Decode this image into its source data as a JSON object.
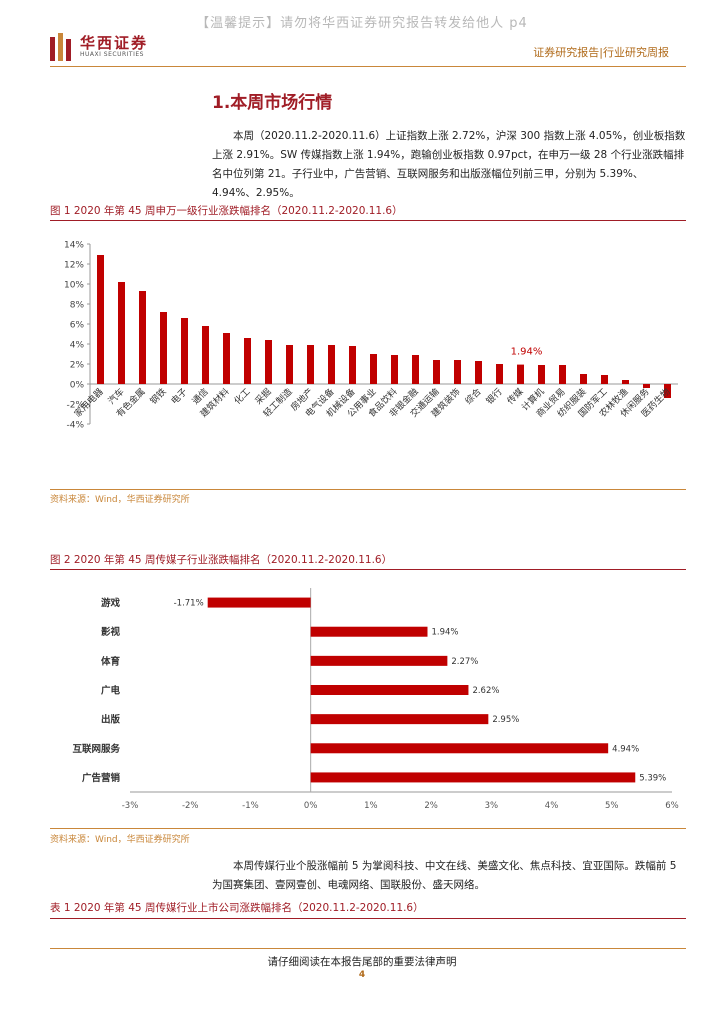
{
  "notice": "【温馨提示】请勿将华西证券研究报告转发给他人 p4",
  "logo": {
    "cn": "华西证券",
    "en": "HUAXI SECURITIES"
  },
  "header_right": "证券研究报告|行业研究周报",
  "section_title": "1.本周市场行情",
  "paragraph1": "本周（2020.11.2-2020.11.6）上证指数上涨 2.72%，沪深 300 指数上涨 4.05%，创业板指数上涨 2.91%。SW 传媒指数上涨 1.94%，跑输创业板指数 0.97pct，在申万一级 28 个行业涨跌幅排名中位列第 21。子行业中，广告营销、互联网服务和出版涨幅位列前三甲，分别为 5.39%、4.94%、2.95%。",
  "figure1_caption": "图 1  2020 年第 45 周申万一级行业涨跌幅排名（2020.11.2-2020.11.6）",
  "figure2_caption": "图 2  2020 年第 45 周传媒子行业涨跌幅排名（2020.11.2-2020.11.6）",
  "source1": "资料来源：Wind，华西证券研究所",
  "source2": "资料来源：Wind，华西证券研究所",
  "paragraph2": "本周传媒行业个股涨幅前 5 为掌阅科技、中文在线、美盛文化、焦点科技、宜亚国际。跌幅前 5 为国赛集团、壹网壹创、电魂网络、国联股份、盛天网络。",
  "table1_caption": "表 1  2020 年第 45 周传媒行业上市公司涨跌幅排名（2020.11.2-2020.11.6）",
  "footer_text": "请仔细阅读在本报告尾部的重要法律声明",
  "page_number": "4",
  "colors": {
    "bar": "#c00000",
    "accent": "#a01d26",
    "rule": "#c9873a"
  },
  "chart_data": [
    {
      "type": "bar",
      "categories": [
        "家用电器",
        "汽车",
        "有色金属",
        "钢铁",
        "电子",
        "通信",
        "建筑材料",
        "化工",
        "采掘",
        "轻工制造",
        "房地产",
        "电气设备",
        "机械设备",
        "公用事业",
        "食品饮料",
        "非银金融",
        "交通运输",
        "建筑装饰",
        "综合",
        "银行",
        "传媒",
        "计算机",
        "商业贸易",
        "纺织服装",
        "国防军工",
        "农林牧渔",
        "休闲服务",
        "医药生物"
      ],
      "values": [
        12.9,
        10.2,
        9.3,
        7.2,
        6.6,
        5.8,
        5.1,
        4.6,
        4.4,
        3.9,
        3.9,
        3.9,
        3.8,
        3.0,
        2.9,
        2.9,
        2.4,
        2.4,
        2.3,
        2.0,
        1.94,
        1.9,
        1.9,
        1.0,
        0.9,
        0.4,
        -0.4,
        -1.4
      ],
      "highlight": {
        "category": "传媒",
        "label": "1.94%"
      },
      "ylim": [
        -4,
        14
      ],
      "yticks": [
        "14%",
        "12%",
        "10%",
        "8%",
        "6%",
        "4%",
        "2%",
        "0%",
        "-2%",
        "-4%"
      ],
      "ytick_values": [
        14,
        12,
        10,
        8,
        6,
        4,
        2,
        0,
        -2,
        -4
      ],
      "grid": false,
      "legend": "none"
    },
    {
      "type": "bar",
      "orientation": "horizontal",
      "categories": [
        "游戏",
        "影视",
        "体育",
        "广电",
        "出版",
        "互联网服务",
        "广告营销"
      ],
      "values": [
        -1.71,
        1.94,
        2.27,
        2.62,
        2.95,
        4.94,
        5.39
      ],
      "data_labels": [
        "-1.71%",
        "1.94%",
        "2.27%",
        "2.62%",
        "2.95%",
        "4.94%",
        "5.39%"
      ],
      "xlim": [
        -3,
        6
      ],
      "xticks": [
        "-3%",
        "-2%",
        "-1%",
        "0%",
        "1%",
        "2%",
        "3%",
        "4%",
        "5%",
        "6%"
      ],
      "xtick_values": [
        -3,
        -2,
        -1,
        0,
        1,
        2,
        3,
        4,
        5,
        6
      ],
      "grid": false,
      "legend": "none"
    }
  ]
}
